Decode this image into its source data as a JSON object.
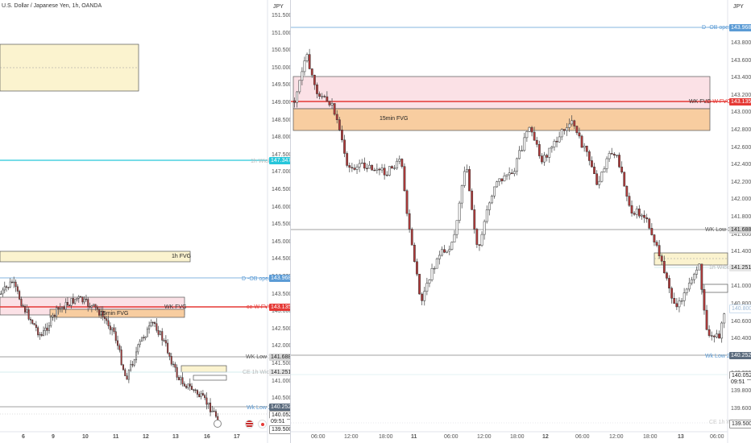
{
  "left_chart": {
    "legend": "U.S. Dollar / Japanese Yen, 1h, OANDA",
    "currency": "JPY",
    "y_ticks": [
      "151.500",
      "151.000",
      "150.500",
      "150.000",
      "149.500",
      "149.000",
      "148.500",
      "148.000",
      "147.500",
      "147.000",
      "146.500",
      "146.000",
      "145.500",
      "145.000",
      "144.500",
      "144.000",
      "143.500",
      "143.000",
      "142.500",
      "142.000",
      "141.500",
      "141.000",
      "140.500",
      "140.000",
      "139.500"
    ],
    "x_ticks": [
      "6",
      "9",
      "10",
      "11",
      "12",
      "13",
      "16",
      "17"
    ],
    "labels": {
      "fvg_1h": "1h FVG",
      "fvg_15m": "15min FVG",
      "wk_fvg": "WK FVG",
      "ce_wfvg": "ce W FVG",
      "d_ob_open": "D -OB open",
      "wk_low_1": "WK Low 1",
      "ce_1h_wick": "CE 1h Wick",
      "wk_low_2": "Wk Low 2",
      "one_h_wick": "1h Wick"
    },
    "price_tags": {
      "cyan": "147.347",
      "d_ob": "143.968",
      "ce_wfvg": "143.135",
      "wk_low_1": "141.688",
      "ce_1h": "141.251",
      "wk_low_2": "140.252",
      "last": "140.052",
      "countdown": "09:51",
      "bottom": "139.500"
    }
  },
  "right_chart": {
    "currency": "JPY",
    "y_ticks": [
      "143.800",
      "143.600",
      "143.400",
      "143.200",
      "143.000",
      "142.800",
      "142.600",
      "142.400",
      "142.200",
      "142.000",
      "141.800",
      "141.600",
      "141.400",
      "141.200",
      "141.000",
      "140.800",
      "140.600",
      "140.400",
      "140.200",
      "140.000",
      "139.800",
      "139.600"
    ],
    "x_ticks": [
      "06:00",
      "12:00",
      "18:00",
      "11",
      "06:00",
      "12:00",
      "18:00",
      "12",
      "06:00",
      "12:00",
      "18:00",
      "13",
      "06:00"
    ],
    "labels": {
      "fvg_15m": "15min FVG",
      "d_ob_open": "D -OB open",
      "wk_fvg": "WK FVG",
      "ce_wfvg": "ce W FVG",
      "wk_low_1": "WK Low 1",
      "wk_low_2": "Wk Low 2",
      "one_h_wick": "1h Wick",
      "ce_1h_wick": "CE 1h Wick"
    },
    "price_tags": {
      "d_ob": "143.968",
      "ce_wfvg": "143.135",
      "wk_low_1": "141.688",
      "ce_1h": "141.251",
      "faint": "140.800",
      "wk_low_2": "140.252",
      "last": "140.052",
      "countdown": "09:51",
      "bottom": "139.500"
    }
  },
  "colors": {
    "bull": "#ffffff",
    "bear": "#b33a3a",
    "wick": "#555555",
    "cyan": "#26c6da",
    "blue_line": "#5b9bd5",
    "red_line": "#e53935",
    "gray_line": "#808080",
    "fvg_yellow": "#fbf3cf",
    "fvg_pink": "#fbe1e6",
    "fvg_orange": "#f8cda0"
  }
}
